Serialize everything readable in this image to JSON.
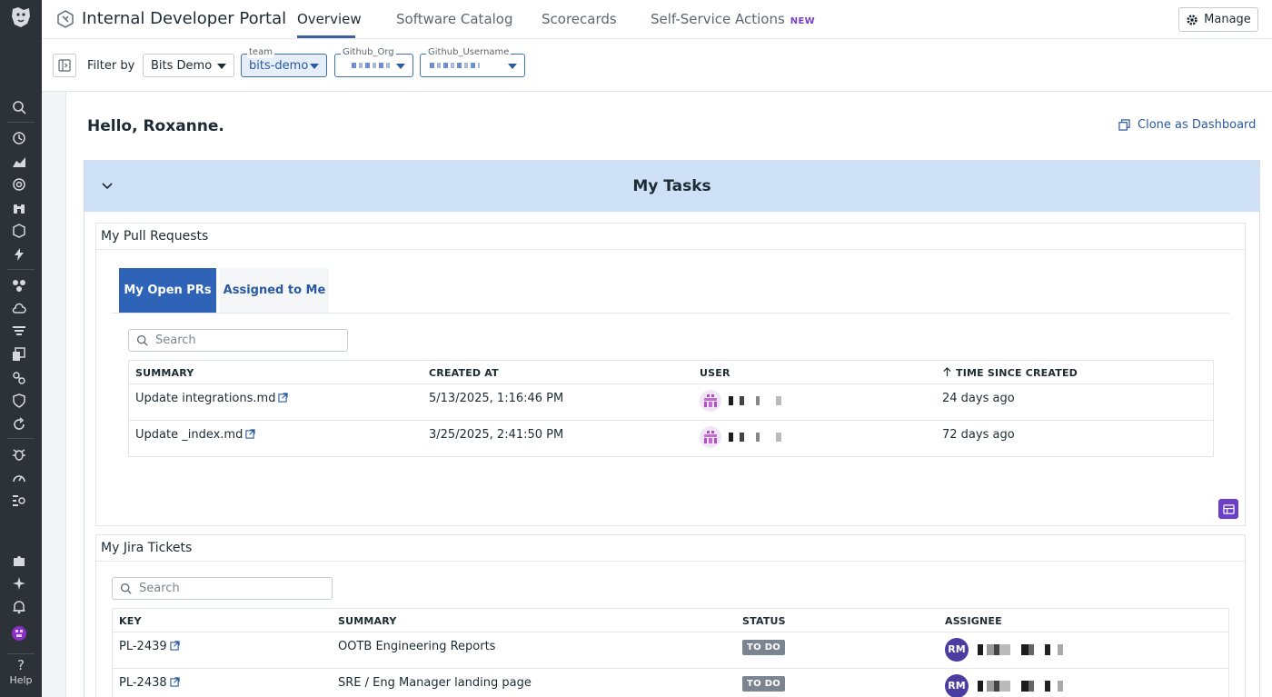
{
  "topbar": {
    "title": "Internal Developer Portal",
    "tabs": [
      {
        "label": "Overview",
        "active": true
      },
      {
        "label": "Software Catalog",
        "active": false
      },
      {
        "label": "Scorecards",
        "active": false
      },
      {
        "label": "Self-Service Actions",
        "active": false,
        "badge": "NEW"
      }
    ],
    "manage_label": "Manage"
  },
  "rail": {
    "help_label": "Help"
  },
  "filters": {
    "label": "Filter by",
    "selects": [
      {
        "legend": "",
        "value": "Bits Demo"
      },
      {
        "legend": "team",
        "value": "bits-demo"
      },
      {
        "legend": "Github_Org",
        "value": ""
      },
      {
        "legend": "Github_Username",
        "value": ""
      }
    ]
  },
  "page": {
    "greeting": "Hello, Roxanne.",
    "clone_label": "Clone as Dashboard",
    "group_title": "My Tasks"
  },
  "pull_requests": {
    "title": "My Pull Requests",
    "tabs": [
      {
        "label": "My Open PRs",
        "active": true
      },
      {
        "label": "Assigned to Me",
        "active": false
      }
    ],
    "search_placeholder": "Search",
    "columns": [
      "SUMMARY",
      "CREATED AT",
      "USER",
      "TIME SINCE CREATED"
    ],
    "rows": [
      {
        "summary": "Update integrations.md",
        "created_at": "5/13/2025, 1:16:46 PM",
        "time_since": "24 days ago"
      },
      {
        "summary": "Update _index.md",
        "created_at": "3/25/2025, 2:41:50 PM",
        "time_since": "72 days ago"
      }
    ]
  },
  "jira": {
    "title": "My Jira Tickets",
    "search_placeholder": "Search",
    "columns": [
      "KEY",
      "SUMMARY",
      "STATUS",
      "ASSIGNEE"
    ],
    "rows": [
      {
        "key": "PL-2439",
        "summary": "OOTB Engineering Reports",
        "status": "TO DO",
        "assignee_initials": "RM"
      },
      {
        "key": "PL-2438",
        "summary": "SRE / Eng Manager landing page",
        "status": "TO DO",
        "assignee_initials": "RM"
      }
    ]
  },
  "colors": {
    "accent": "#2e63b8",
    "group_header": "#cfe1f7",
    "rail": "#2d3238",
    "badge_purple": "#7a3fc2",
    "status_todo": "#7a8591"
  }
}
